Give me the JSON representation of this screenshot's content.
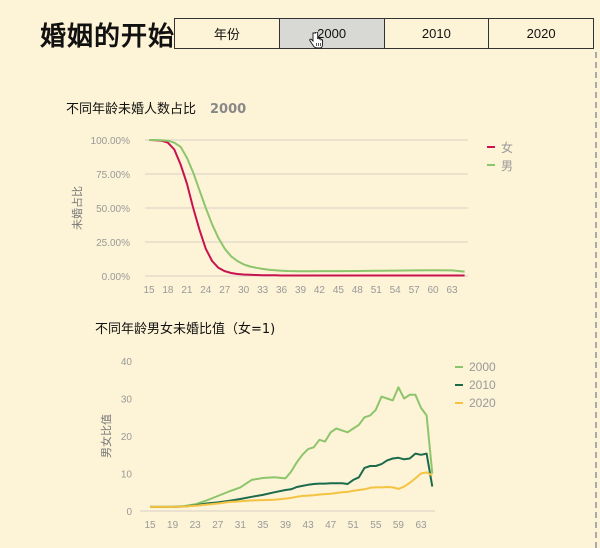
{
  "header": {
    "title": "婚姻的开始",
    "tabs": [
      {
        "label": "年份",
        "active": false
      },
      {
        "label": "2000",
        "active": true
      },
      {
        "label": "2010",
        "active": false
      },
      {
        "label": "2020",
        "active": false
      }
    ]
  },
  "chart1": {
    "title": "不同年龄未婚人数占比",
    "year": "2000"
  },
  "chart2": {
    "title": "不同年龄男女未婚比值（女=1)"
  },
  "chart_data": [
    {
      "type": "line",
      "title": "不同年龄未婚人数占比 2000",
      "xlabel": "",
      "ylabel": "未婚占比",
      "x_ticks": [
        15,
        18,
        21,
        24,
        27,
        30,
        33,
        36,
        39,
        42,
        45,
        48,
        51,
        54,
        57,
        60,
        63
      ],
      "y_ticks": [
        "0.00%",
        "25.00%",
        "50.00%",
        "75.00%",
        "100.00%"
      ],
      "ylim": [
        0,
        100
      ],
      "grid": true,
      "legend_position": "right",
      "x": [
        15,
        16,
        17,
        18,
        19,
        20,
        21,
        22,
        23,
        24,
        25,
        26,
        27,
        28,
        29,
        30,
        31,
        32,
        33,
        34,
        35,
        36,
        37,
        38,
        39,
        40,
        42,
        45,
        48,
        51,
        54,
        57,
        60,
        63,
        65
      ],
      "series": [
        {
          "name": "女",
          "color": "#c8124f",
          "values": [
            100,
            99.8,
            99.5,
            98,
            93,
            82,
            68,
            50,
            34,
            20,
            11,
            6,
            3.5,
            2.2,
            1.5,
            1.1,
            0.9,
            0.7,
            0.6,
            0.5,
            0.5,
            0.4,
            0.4,
            0.4,
            0.4,
            0.4,
            0.4,
            0.4,
            0.4,
            0.4,
            0.4,
            0.4,
            0.4,
            0.4,
            0.4
          ]
        },
        {
          "name": "男",
          "color": "#8dc56c",
          "values": [
            100,
            100,
            99.8,
            99.5,
            98,
            95,
            87,
            76,
            63,
            50,
            38,
            28,
            20,
            14.5,
            11,
            8.5,
            7,
            6,
            5.2,
            4.6,
            4.2,
            3.9,
            3.7,
            3.6,
            3.5,
            3.5,
            3.6,
            3.6,
            3.7,
            3.8,
            4.0,
            4.1,
            4.2,
            4.1,
            3.2
          ]
        }
      ]
    },
    {
      "type": "line",
      "title": "不同年龄男女未婚比值（女=1)",
      "xlabel": "",
      "ylabel": "男女比值",
      "x_ticks": [
        15,
        19,
        23,
        27,
        31,
        35,
        39,
        43,
        47,
        51,
        55,
        59,
        63
      ],
      "y_ticks": [
        0,
        10,
        20,
        30,
        40
      ],
      "ylim": [
        0,
        40
      ],
      "grid": false,
      "legend_position": "right",
      "x": [
        15,
        17,
        19,
        21,
        23,
        25,
        27,
        29,
        31,
        33,
        35,
        37,
        39,
        40,
        41,
        42,
        43,
        44,
        45,
        46,
        47,
        48,
        49,
        50,
        51,
        52,
        53,
        54,
        55,
        56,
        57,
        58,
        59,
        60,
        61,
        62,
        63,
        64,
        65
      ],
      "series": [
        {
          "name": "2000",
          "color": "#8dc56c",
          "values": [
            1.1,
            1.1,
            1.1,
            1.3,
            1.8,
            2.8,
            4.0,
            5.2,
            6.3,
            8.3,
            8.8,
            9.0,
            8.7,
            10.5,
            13,
            15,
            16.5,
            17,
            19,
            18.5,
            21,
            22,
            21.5,
            21,
            22,
            23,
            25,
            25.5,
            27,
            30.5,
            30,
            29.5,
            33,
            30,
            31,
            31,
            27.5,
            25.5,
            10
          ]
        },
        {
          "name": "2010",
          "color": "#1b6b4b",
          "values": [
            1.1,
            1.1,
            1.1,
            1.2,
            1.5,
            2.0,
            2.3,
            2.7,
            3.2,
            3.8,
            4.3,
            5.0,
            5.6,
            5.8,
            6.4,
            6.7,
            7.0,
            7.2,
            7.3,
            7.3,
            7.4,
            7.4,
            7.4,
            7.2,
            8.3,
            9.0,
            11.5,
            12,
            12,
            12.5,
            13.5,
            14,
            14.2,
            13.8,
            14,
            15.3,
            15,
            15.3,
            6.5
          ]
        },
        {
          "name": "2020",
          "color": "#f5c342",
          "values": [
            1.1,
            1.1,
            1.1,
            1.2,
            1.4,
            1.7,
            2.0,
            2.4,
            2.6,
            2.8,
            2.9,
            3.0,
            3.3,
            3.5,
            3.8,
            4.0,
            4.1,
            4.2,
            4.4,
            4.5,
            4.6,
            4.8,
            5.0,
            5.1,
            5.4,
            5.6,
            5.8,
            6.2,
            6.3,
            6.3,
            6.4,
            6.3,
            5.9,
            6.5,
            7.5,
            8.7,
            10.0,
            10.3,
            9.5
          ]
        }
      ]
    }
  ]
}
